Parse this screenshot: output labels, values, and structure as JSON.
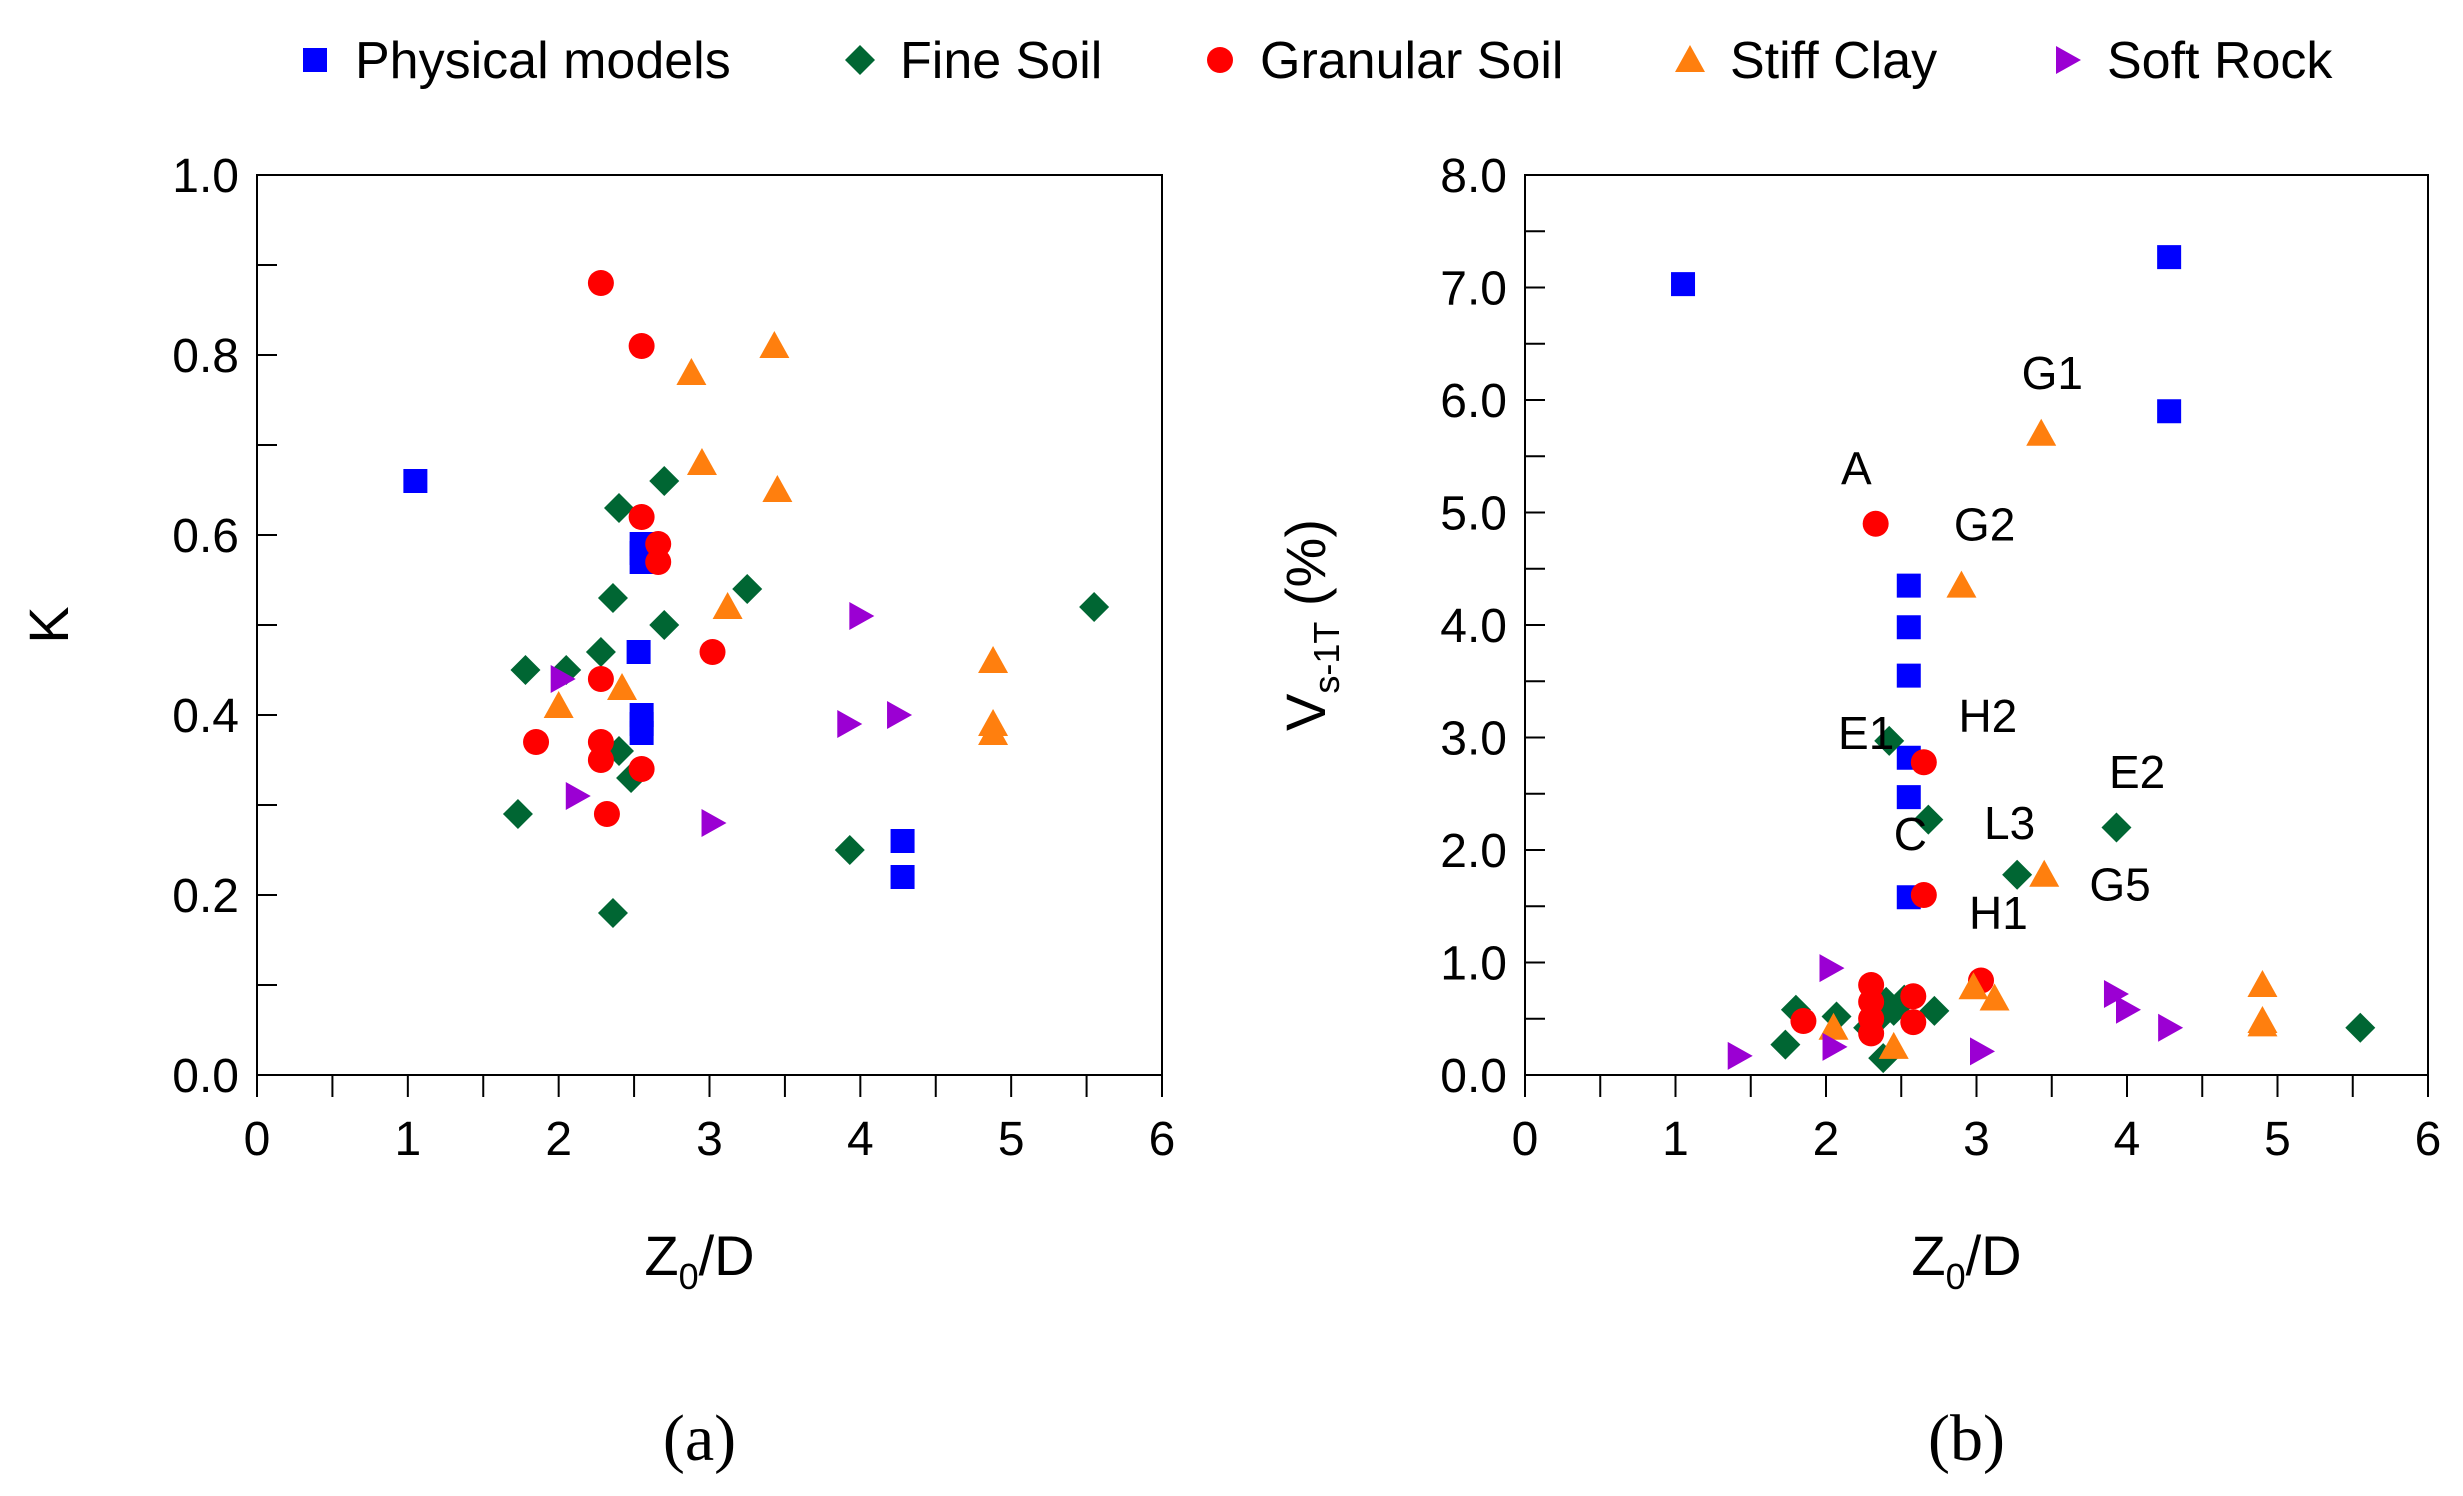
{
  "legend": [
    {
      "name": "Physical models",
      "marker": "square",
      "color": "#0000ff"
    },
    {
      "name": "Fine Soil",
      "marker": "diamond",
      "color": "#006633"
    },
    {
      "name": "Granular Soil",
      "marker": "circle",
      "color": "#ff0000"
    },
    {
      "name": "Stiff Clay",
      "marker": "triangle-up",
      "color": "#ff7f0e"
    },
    {
      "name": "Soft Rock",
      "marker": "triangle-right",
      "color": "#9b00d3"
    }
  ],
  "chart_data": [
    {
      "type": "scatter",
      "panel_label": "(a)",
      "xlabel": "Z",
      "xlabel_sub": "0",
      "xlabel_tail": "/D",
      "ylabel": "K",
      "xlim": [
        0,
        6
      ],
      "ylim": [
        0,
        1.0
      ],
      "xticks": [
        "0",
        "1",
        "2",
        "3",
        "4",
        "5",
        "6"
      ],
      "yticks": [
        "0.0",
        "0.2",
        "0.4",
        "0.6",
        "0.8",
        "1.0"
      ],
      "series": [
        {
          "name": "Physical models",
          "points": [
            [
              1.05,
              0.66
            ],
            [
              2.55,
              0.59
            ],
            [
              2.55,
              0.58
            ],
            [
              2.55,
              0.57
            ],
            [
              2.53,
              0.47
            ],
            [
              2.55,
              0.4
            ],
            [
              2.55,
              0.39
            ],
            [
              2.55,
              0.38
            ],
            [
              4.28,
              0.26
            ],
            [
              4.28,
              0.22
            ]
          ]
        },
        {
          "name": "Fine Soil",
          "points": [
            [
              1.73,
              0.29
            ],
            [
              1.78,
              0.45
            ],
            [
              2.05,
              0.45
            ],
            [
              2.28,
              0.47
            ],
            [
              2.36,
              0.53
            ],
            [
              2.4,
              0.63
            ],
            [
              2.4,
              0.36
            ],
            [
              2.48,
              0.33
            ],
            [
              2.36,
              0.18
            ],
            [
              2.7,
              0.5
            ],
            [
              2.7,
              0.66
            ],
            [
              3.25,
              0.54
            ],
            [
              3.93,
              0.25
            ],
            [
              5.55,
              0.52
            ]
          ]
        },
        {
          "name": "Granular Soil",
          "points": [
            [
              2.28,
              0.88
            ],
            [
              2.55,
              0.81
            ],
            [
              2.55,
              0.62
            ],
            [
              2.66,
              0.59
            ],
            [
              2.66,
              0.57
            ],
            [
              2.28,
              0.44
            ],
            [
              1.85,
              0.37
            ],
            [
              2.28,
              0.37
            ],
            [
              2.28,
              0.35
            ],
            [
              2.55,
              0.34
            ],
            [
              2.32,
              0.29
            ],
            [
              3.02,
              0.47
            ]
          ]
        },
        {
          "name": "Stiff Clay",
          "points": [
            [
              2.88,
              0.78
            ],
            [
              3.43,
              0.81
            ],
            [
              2.95,
              0.68
            ],
            [
              3.45,
              0.65
            ],
            [
              3.12,
              0.52
            ],
            [
              2.42,
              0.43
            ],
            [
              2.0,
              0.41
            ],
            [
              4.88,
              0.46
            ],
            [
              4.88,
              0.39
            ],
            [
              4.88,
              0.38
            ]
          ]
        },
        {
          "name": "Soft Rock",
          "points": [
            [
              2.02,
              0.44
            ],
            [
              2.12,
              0.31
            ],
            [
              3.02,
              0.28
            ],
            [
              4.0,
              0.51
            ],
            [
              4.25,
              0.4
            ],
            [
              3.92,
              0.39
            ]
          ]
        }
      ]
    },
    {
      "type": "scatter",
      "panel_label": "(b)",
      "xlabel": "Z",
      "xlabel_sub": "0",
      "xlabel_tail": "/D",
      "ylabel": "V",
      "ylabel_sub": "s-1T",
      "ylabel_tail": " (%)",
      "xlim": [
        0,
        6
      ],
      "ylim": [
        0,
        8.0
      ],
      "xticks": [
        "0",
        "1",
        "2",
        "3",
        "4",
        "5",
        "6"
      ],
      "yticks": [
        "0.0",
        "1.0",
        "2.0",
        "3.0",
        "4.0",
        "5.0",
        "6.0",
        "7.0",
        "8.0"
      ],
      "series": [
        {
          "name": "Physical models",
          "points": [
            [
              1.05,
              7.03
            ],
            [
              4.28,
              7.27
            ],
            [
              4.28,
              5.9
            ],
            [
              2.55,
              4.35
            ],
            [
              2.55,
              3.98
            ],
            [
              2.55,
              3.55
            ],
            [
              2.55,
              2.82
            ],
            [
              2.55,
              2.47
            ],
            [
              2.55,
              1.58
            ]
          ]
        },
        {
          "name": "Fine Soil",
          "points": [
            [
              2.42,
              2.97
            ],
            [
              2.68,
              2.27
            ],
            [
              3.27,
              1.78
            ],
            [
              3.93,
              2.2
            ],
            [
              1.73,
              0.27
            ],
            [
              1.8,
              0.58
            ],
            [
              2.07,
              0.52
            ],
            [
              2.28,
              0.42
            ],
            [
              2.35,
              0.5
            ],
            [
              2.38,
              0.15
            ],
            [
              2.4,
              0.65
            ],
            [
              2.45,
              0.57
            ],
            [
              2.52,
              0.67
            ],
            [
              2.72,
              0.57
            ],
            [
              5.55,
              0.42
            ]
          ]
        },
        {
          "name": "Granular Soil",
          "points": [
            [
              2.33,
              4.9
            ],
            [
              2.65,
              2.78
            ],
            [
              2.65,
              1.6
            ],
            [
              1.85,
              0.48
            ],
            [
              2.3,
              0.8
            ],
            [
              2.3,
              0.65
            ],
            [
              2.3,
              0.5
            ],
            [
              2.3,
              0.37
            ],
            [
              2.58,
              0.7
            ],
            [
              2.58,
              0.47
            ],
            [
              3.03,
              0.84
            ]
          ]
        },
        {
          "name": "Stiff Clay",
          "points": [
            [
              3.43,
              5.7
            ],
            [
              2.9,
              4.35
            ],
            [
              3.45,
              1.78
            ],
            [
              2.98,
              0.78
            ],
            [
              3.12,
              0.68
            ],
            [
              2.05,
              0.42
            ],
            [
              2.45,
              0.25
            ],
            [
              4.9,
              0.8
            ],
            [
              4.9,
              0.48
            ],
            [
              4.9,
              0.45
            ]
          ]
        },
        {
          "name": "Soft Rock",
          "points": [
            [
              1.42,
              0.17
            ],
            [
              2.03,
              0.95
            ],
            [
              2.05,
              0.25
            ],
            [
              3.03,
              0.21
            ],
            [
              3.92,
              0.72
            ],
            [
              4.0,
              0.58
            ],
            [
              4.28,
              0.42
            ]
          ]
        }
      ],
      "annotations": [
        {
          "text": "G1",
          "x": 3.3,
          "y": 6.1
        },
        {
          "text": "A",
          "x": 2.1,
          "y": 5.25
        },
        {
          "text": "G2",
          "x": 2.85,
          "y": 4.75
        },
        {
          "text": "E1",
          "x": 2.08,
          "y": 2.9
        },
        {
          "text": "H2",
          "x": 2.88,
          "y": 3.05
        },
        {
          "text": "E2",
          "x": 3.88,
          "y": 2.55
        },
        {
          "text": "C",
          "x": 2.45,
          "y": 2.0
        },
        {
          "text": "L3",
          "x": 3.05,
          "y": 2.1
        },
        {
          "text": "G5",
          "x": 3.75,
          "y": 1.55
        },
        {
          "text": "H1",
          "x": 2.95,
          "y": 1.3
        }
      ]
    }
  ]
}
